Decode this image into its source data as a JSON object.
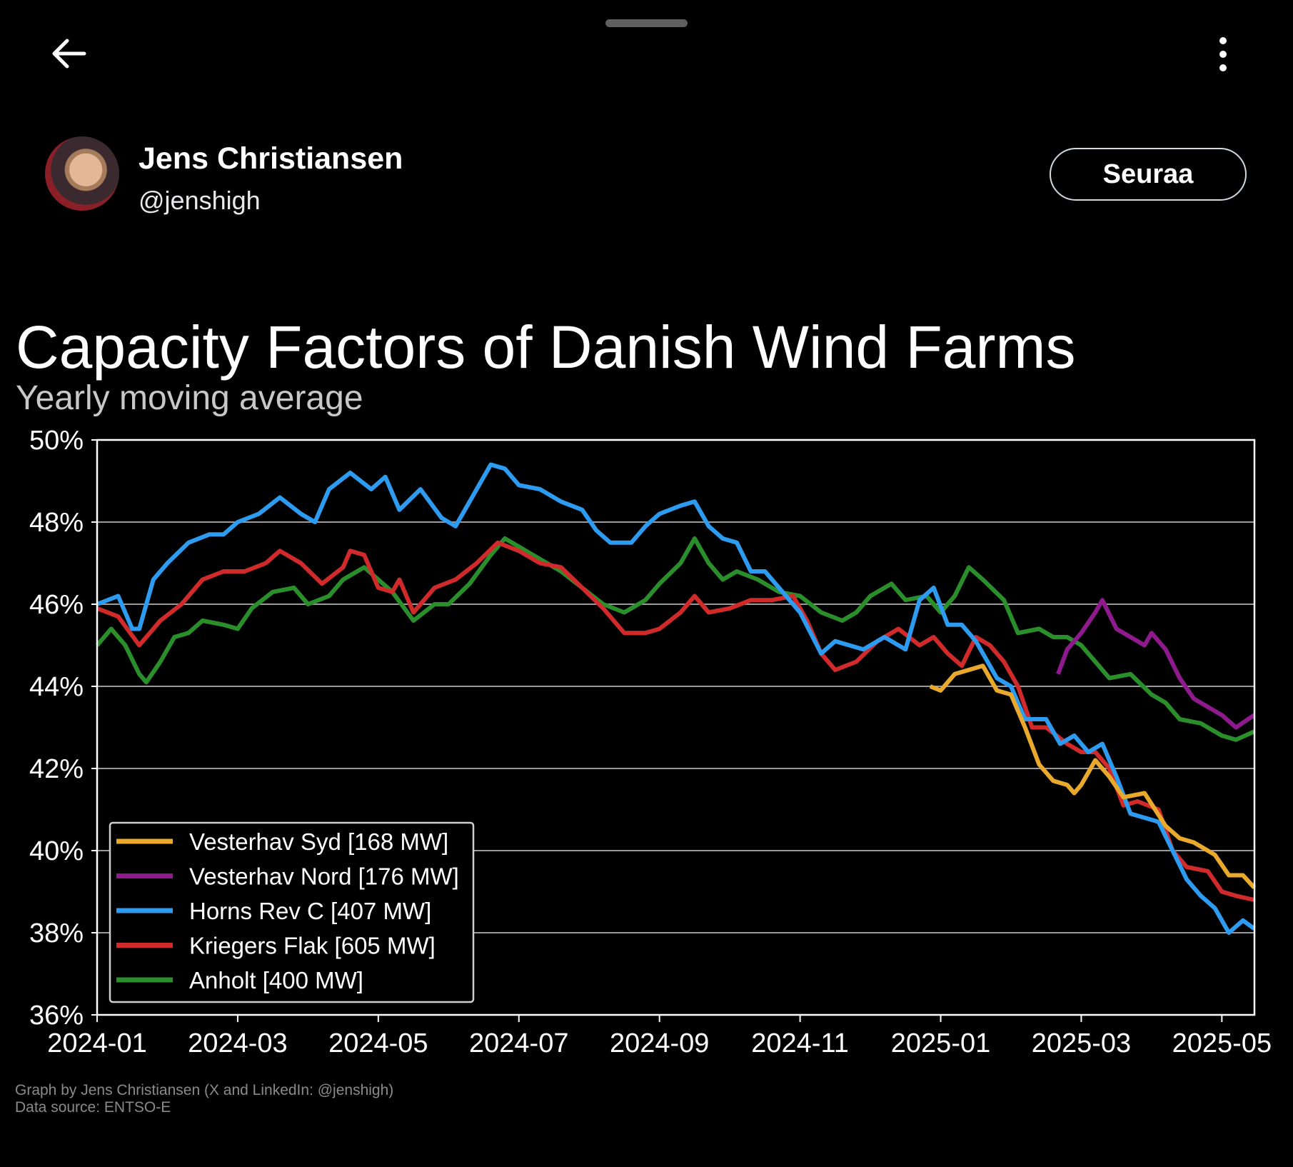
{
  "header": {
    "back_icon": "arrow-left-icon",
    "more_icon": "more-vertical-icon"
  },
  "profile": {
    "name": "Jens Christiansen",
    "handle": "@jenshigh",
    "follow_label": "Seuraa"
  },
  "credits": [
    "Graph by Jens Christiansen (X and LinkedIn: @jenshigh)",
    "Data source: ENTSO-E"
  ],
  "chart_data": {
    "type": "line",
    "title": "Capacity Factors of Danish Wind Farms",
    "subtitle": "Yearly moving average",
    "xlabel": "",
    "ylabel": "",
    "x_unit": "months since 2024-01",
    "xlim": [
      0,
      16.46
    ],
    "ylim": [
      36,
      50
    ],
    "yticks": [
      36,
      38,
      40,
      42,
      44,
      46,
      48,
      50
    ],
    "ytick_labels": [
      "36%",
      "38%",
      "40%",
      "42%",
      "44%",
      "46%",
      "48%",
      "50%"
    ],
    "xticks": [
      0,
      2,
      4,
      6,
      8,
      10,
      12,
      14,
      16
    ],
    "xtick_labels": [
      "2024-01",
      "2024-03",
      "2024-05",
      "2024-07",
      "2024-09",
      "2024-11",
      "2025-01",
      "2025-03",
      "2025-05"
    ],
    "grid": "horizontal",
    "legend_position": "bottom-left",
    "background": "#000000",
    "series": [
      {
        "name": "Vesterhav Syd [168 MW]",
        "color": "#e8a92c",
        "points": [
          [
            11.85,
            44.0
          ],
          [
            12.0,
            43.9
          ],
          [
            12.2,
            44.3
          ],
          [
            12.4,
            44.4
          ],
          [
            12.6,
            44.5
          ],
          [
            12.8,
            43.9
          ],
          [
            13.0,
            43.8
          ],
          [
            13.2,
            43.0
          ],
          [
            13.4,
            42.1
          ],
          [
            13.6,
            41.7
          ],
          [
            13.8,
            41.6
          ],
          [
            13.9,
            41.4
          ],
          [
            14.0,
            41.6
          ],
          [
            14.2,
            42.2
          ],
          [
            14.4,
            41.8
          ],
          [
            14.6,
            41.3
          ],
          [
            14.9,
            41.4
          ],
          [
            15.2,
            40.6
          ],
          [
            15.4,
            40.3
          ],
          [
            15.6,
            40.2
          ],
          [
            15.9,
            39.9
          ],
          [
            16.1,
            39.4
          ],
          [
            16.3,
            39.4
          ],
          [
            16.46,
            39.1
          ]
        ]
      },
      {
        "name": "Vesterhav Nord [176 MW]",
        "color": "#8e1a8e",
        "points": [
          [
            13.67,
            44.3
          ],
          [
            13.8,
            44.9
          ],
          [
            14.0,
            45.3
          ],
          [
            14.2,
            45.8
          ],
          [
            14.3,
            46.1
          ],
          [
            14.5,
            45.4
          ],
          [
            14.7,
            45.2
          ],
          [
            14.9,
            45.0
          ],
          [
            15.0,
            45.3
          ],
          [
            15.2,
            44.9
          ],
          [
            15.4,
            44.2
          ],
          [
            15.6,
            43.7
          ],
          [
            15.8,
            43.5
          ],
          [
            16.0,
            43.3
          ],
          [
            16.2,
            43.0
          ],
          [
            16.46,
            43.3
          ]
        ]
      },
      {
        "name": "Horns Rev C [407 MW]",
        "color": "#2d9bf0",
        "points": [
          [
            0,
            46.0
          ],
          [
            0.3,
            46.2
          ],
          [
            0.5,
            45.4
          ],
          [
            0.6,
            45.4
          ],
          [
            0.8,
            46.6
          ],
          [
            1.0,
            47.0
          ],
          [
            1.3,
            47.5
          ],
          [
            1.6,
            47.7
          ],
          [
            1.8,
            47.7
          ],
          [
            2.0,
            48.0
          ],
          [
            2.3,
            48.2
          ],
          [
            2.6,
            48.6
          ],
          [
            2.9,
            48.2
          ],
          [
            3.1,
            48.0
          ],
          [
            3.3,
            48.8
          ],
          [
            3.6,
            49.2
          ],
          [
            3.9,
            48.8
          ],
          [
            4.1,
            49.1
          ],
          [
            4.3,
            48.3
          ],
          [
            4.6,
            48.8
          ],
          [
            4.9,
            48.1
          ],
          [
            5.1,
            47.9
          ],
          [
            5.3,
            48.5
          ],
          [
            5.6,
            49.4
          ],
          [
            5.8,
            49.3
          ],
          [
            6.0,
            48.9
          ],
          [
            6.3,
            48.8
          ],
          [
            6.6,
            48.5
          ],
          [
            6.9,
            48.3
          ],
          [
            7.1,
            47.8
          ],
          [
            7.3,
            47.5
          ],
          [
            7.6,
            47.5
          ],
          [
            7.8,
            47.9
          ],
          [
            8.0,
            48.2
          ],
          [
            8.3,
            48.4
          ],
          [
            8.5,
            48.5
          ],
          [
            8.7,
            47.9
          ],
          [
            8.9,
            47.6
          ],
          [
            9.1,
            47.5
          ],
          [
            9.3,
            46.8
          ],
          [
            9.5,
            46.8
          ],
          [
            9.8,
            46.2
          ],
          [
            10.0,
            45.8
          ],
          [
            10.3,
            44.8
          ],
          [
            10.5,
            45.1
          ],
          [
            10.7,
            45.0
          ],
          [
            10.9,
            44.9
          ],
          [
            11.2,
            45.2
          ],
          [
            11.5,
            44.9
          ],
          [
            11.7,
            46.1
          ],
          [
            11.9,
            46.4
          ],
          [
            12.1,
            45.5
          ],
          [
            12.3,
            45.5
          ],
          [
            12.5,
            45.1
          ],
          [
            12.8,
            44.2
          ],
          [
            13.0,
            44.0
          ],
          [
            13.2,
            43.2
          ],
          [
            13.5,
            43.2
          ],
          [
            13.7,
            42.6
          ],
          [
            13.9,
            42.8
          ],
          [
            14.1,
            42.4
          ],
          [
            14.3,
            42.6
          ],
          [
            14.5,
            41.8
          ],
          [
            14.7,
            40.9
          ],
          [
            14.9,
            40.8
          ],
          [
            15.1,
            40.7
          ],
          [
            15.3,
            40.0
          ],
          [
            15.5,
            39.3
          ],
          [
            15.7,
            38.9
          ],
          [
            15.9,
            38.6
          ],
          [
            16.1,
            38.0
          ],
          [
            16.3,
            38.3
          ],
          [
            16.46,
            38.1
          ]
        ]
      },
      {
        "name": "Kriegers Flak [605 MW]",
        "color": "#d02a2a",
        "points": [
          [
            0,
            45.9
          ],
          [
            0.3,
            45.7
          ],
          [
            0.6,
            45.0
          ],
          [
            0.9,
            45.6
          ],
          [
            1.2,
            46.0
          ],
          [
            1.5,
            46.6
          ],
          [
            1.8,
            46.8
          ],
          [
            2.1,
            46.8
          ],
          [
            2.4,
            47.0
          ],
          [
            2.6,
            47.3
          ],
          [
            2.9,
            47.0
          ],
          [
            3.2,
            46.5
          ],
          [
            3.5,
            46.9
          ],
          [
            3.6,
            47.3
          ],
          [
            3.8,
            47.2
          ],
          [
            4.0,
            46.4
          ],
          [
            4.2,
            46.3
          ],
          [
            4.3,
            46.6
          ],
          [
            4.5,
            45.8
          ],
          [
            4.8,
            46.4
          ],
          [
            5.1,
            46.6
          ],
          [
            5.4,
            47.0
          ],
          [
            5.7,
            47.5
          ],
          [
            6.0,
            47.3
          ],
          [
            6.3,
            47.0
          ],
          [
            6.6,
            46.9
          ],
          [
            6.9,
            46.4
          ],
          [
            7.2,
            45.9
          ],
          [
            7.5,
            45.3
          ],
          [
            7.8,
            45.3
          ],
          [
            8.0,
            45.4
          ],
          [
            8.3,
            45.8
          ],
          [
            8.5,
            46.2
          ],
          [
            8.7,
            45.8
          ],
          [
            9.0,
            45.9
          ],
          [
            9.3,
            46.1
          ],
          [
            9.6,
            46.1
          ],
          [
            9.9,
            46.2
          ],
          [
            10.1,
            45.6
          ],
          [
            10.3,
            44.8
          ],
          [
            10.5,
            44.4
          ],
          [
            10.8,
            44.6
          ],
          [
            11.1,
            45.1
          ],
          [
            11.4,
            45.4
          ],
          [
            11.7,
            45.0
          ],
          [
            11.9,
            45.2
          ],
          [
            12.1,
            44.8
          ],
          [
            12.3,
            44.5
          ],
          [
            12.5,
            45.2
          ],
          [
            12.7,
            45.0
          ],
          [
            12.9,
            44.6
          ],
          [
            13.1,
            44.0
          ],
          [
            13.3,
            43.0
          ],
          [
            13.5,
            43.0
          ],
          [
            13.8,
            42.6
          ],
          [
            14.0,
            42.4
          ],
          [
            14.2,
            42.4
          ],
          [
            14.4,
            42.0
          ],
          [
            14.6,
            41.1
          ],
          [
            14.8,
            41.2
          ],
          [
            15.1,
            41.0
          ],
          [
            15.3,
            40.0
          ],
          [
            15.5,
            39.6
          ],
          [
            15.8,
            39.5
          ],
          [
            16.0,
            39.0
          ],
          [
            16.2,
            38.9
          ],
          [
            16.46,
            38.8
          ]
        ]
      },
      {
        "name": "Anholt [400 MW]",
        "color": "#2a8f2a",
        "points": [
          [
            0,
            45.0
          ],
          [
            0.2,
            45.4
          ],
          [
            0.4,
            45.0
          ],
          [
            0.6,
            44.3
          ],
          [
            0.7,
            44.1
          ],
          [
            0.9,
            44.6
          ],
          [
            1.1,
            45.2
          ],
          [
            1.3,
            45.3
          ],
          [
            1.5,
            45.6
          ],
          [
            1.8,
            45.5
          ],
          [
            2.0,
            45.4
          ],
          [
            2.2,
            45.9
          ],
          [
            2.5,
            46.3
          ],
          [
            2.8,
            46.4
          ],
          [
            3.0,
            46.0
          ],
          [
            3.3,
            46.2
          ],
          [
            3.5,
            46.6
          ],
          [
            3.8,
            46.9
          ],
          [
            4.0,
            46.6
          ],
          [
            4.2,
            46.3
          ],
          [
            4.5,
            45.6
          ],
          [
            4.8,
            46.0
          ],
          [
            5.0,
            46.0
          ],
          [
            5.3,
            46.5
          ],
          [
            5.6,
            47.2
          ],
          [
            5.8,
            47.6
          ],
          [
            6.0,
            47.4
          ],
          [
            6.3,
            47.1
          ],
          [
            6.6,
            46.8
          ],
          [
            6.9,
            46.4
          ],
          [
            7.2,
            46.0
          ],
          [
            7.5,
            45.8
          ],
          [
            7.8,
            46.1
          ],
          [
            8.0,
            46.5
          ],
          [
            8.3,
            47.0
          ],
          [
            8.5,
            47.6
          ],
          [
            8.7,
            47.0
          ],
          [
            8.9,
            46.6
          ],
          [
            9.1,
            46.8
          ],
          [
            9.4,
            46.6
          ],
          [
            9.7,
            46.3
          ],
          [
            10.0,
            46.2
          ],
          [
            10.3,
            45.8
          ],
          [
            10.6,
            45.6
          ],
          [
            10.8,
            45.8
          ],
          [
            11.0,
            46.2
          ],
          [
            11.3,
            46.5
          ],
          [
            11.5,
            46.1
          ],
          [
            11.8,
            46.2
          ],
          [
            12.0,
            45.8
          ],
          [
            12.2,
            46.2
          ],
          [
            12.4,
            46.9
          ],
          [
            12.6,
            46.6
          ],
          [
            12.9,
            46.1
          ],
          [
            13.1,
            45.3
          ],
          [
            13.4,
            45.4
          ],
          [
            13.6,
            45.2
          ],
          [
            13.8,
            45.2
          ],
          [
            14.0,
            45.0
          ],
          [
            14.2,
            44.6
          ],
          [
            14.4,
            44.2
          ],
          [
            14.7,
            44.3
          ],
          [
            15.0,
            43.8
          ],
          [
            15.2,
            43.6
          ],
          [
            15.4,
            43.2
          ],
          [
            15.7,
            43.1
          ],
          [
            16.0,
            42.8
          ],
          [
            16.2,
            42.7
          ],
          [
            16.46,
            42.9
          ]
        ]
      }
    ]
  }
}
